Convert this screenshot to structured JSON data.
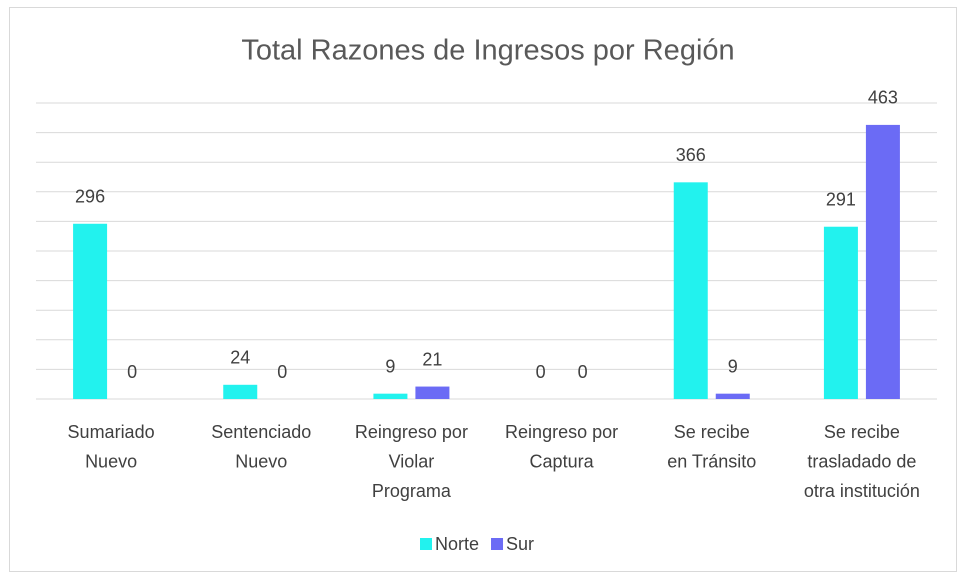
{
  "chart_data": {
    "type": "bar",
    "title": "Total Razones de Ingresos por Región",
    "categories": [
      "Sumariado\nNuevo",
      "Sentenciado\nNuevo",
      "Reingreso por\nViolar\nPrograma",
      "Reingreso por\nCaptura",
      "Se recibe\nen Tránsito",
      "Se recibe\ntrasladado de\notra institución"
    ],
    "series": [
      {
        "name": "Norte",
        "color": "#22f2ee",
        "values": [
          296,
          24,
          9,
          0,
          366,
          291
        ]
      },
      {
        "name": "Sur",
        "color": "#6b6bf5",
        "values": [
          0,
          0,
          21,
          0,
          9,
          463
        ]
      }
    ],
    "ylim": [
      0,
      500
    ],
    "yticks": [
      0,
      50,
      100,
      150,
      200,
      250,
      300,
      350,
      400,
      450,
      500
    ],
    "grid": true,
    "legend": "bottom"
  }
}
